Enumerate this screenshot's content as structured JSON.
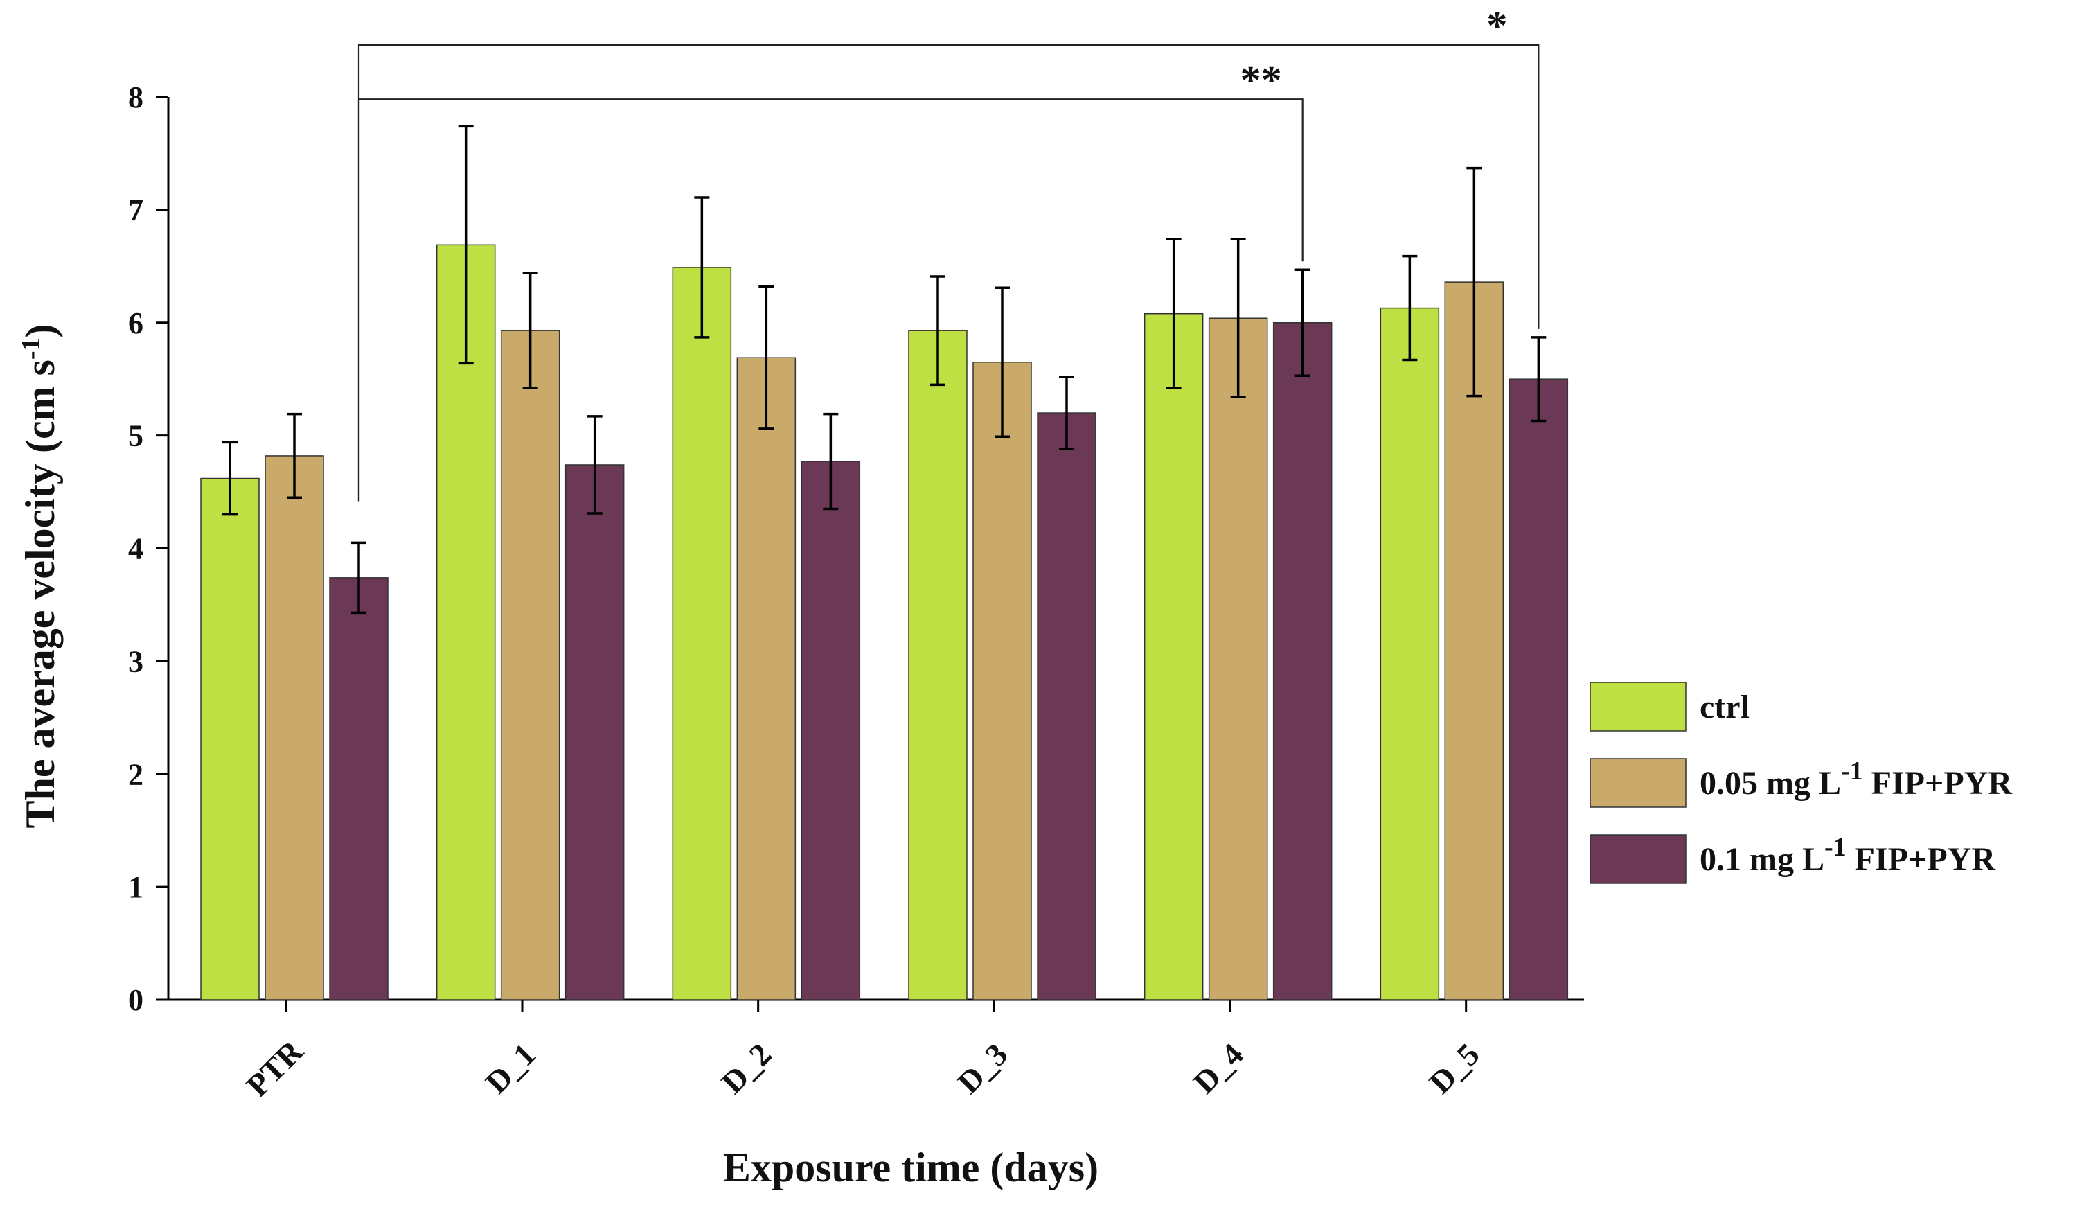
{
  "chart_data": {
    "type": "bar",
    "title": "",
    "xlabel": "Exposure time (days)",
    "ylabel": {
      "main": "The average velocity (cm s",
      "sup": "-1",
      "close": ")"
    },
    "ylim": [
      0,
      8
    ],
    "yticks": [
      "0",
      "1",
      "2",
      "3",
      "4",
      "5",
      "6",
      "7",
      "8"
    ],
    "grid": false,
    "legend_position": "right",
    "categories": [
      "PTR",
      "D_1",
      "D_2",
      "D_3",
      "D_4",
      "D_5"
    ],
    "series": [
      {
        "name": "ctrl",
        "legend": {
          "pre": "ctrl",
          "sup": "",
          "post": ""
        },
        "color": "#bfe043",
        "values": [
          4.62,
          6.69,
          6.49,
          5.93,
          6.08,
          6.13
        ],
        "errors": [
          0.32,
          1.05,
          0.62,
          0.48,
          0.66,
          0.46
        ]
      },
      {
        "name": "0.05 mg L-1 FIP+PYR",
        "legend": {
          "pre": "0.05 mg L",
          "sup": "-1",
          "post": " FIP+PYR"
        },
        "color": "#c9aa6a",
        "values": [
          4.82,
          5.93,
          5.69,
          5.65,
          6.04,
          6.36
        ],
        "errors": [
          0.37,
          0.51,
          0.63,
          0.66,
          0.7,
          1.01
        ]
      },
      {
        "name": "0.1 mg L-1 FIP+PYR",
        "legend": {
          "pre": "0.1 mg L",
          "sup": "-1",
          "post": " FIP+PYR"
        },
        "color": "#6b3855",
        "values": [
          3.74,
          4.74,
          4.77,
          5.2,
          6.0,
          5.5
        ],
        "errors": [
          0.31,
          0.43,
          0.42,
          0.32,
          0.47,
          0.37
        ]
      }
    ],
    "significance": [
      {
        "from_category": "PTR",
        "from_series": 2,
        "to_category": "D_4",
        "to_series": 2,
        "label": "**",
        "line_y": 7.98
      },
      {
        "from_category": "PTR",
        "from_series": 2,
        "to_category": "D_5",
        "to_series": 2,
        "label": "*",
        "line_y": 8.46
      }
    ]
  }
}
